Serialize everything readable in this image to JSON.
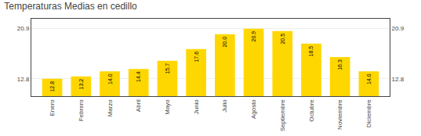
{
  "chart_data": {
    "type": "bar",
    "title": "Temperaturas Medias en cedillo",
    "categories": [
      "Enero",
      "Febrero",
      "Marzo",
      "Abril",
      "Mayo",
      "Junio",
      "Julio",
      "Agosto",
      "Septiembre",
      "Octubre",
      "Noviembre",
      "Diciembre"
    ],
    "values": [
      12.8,
      13.2,
      14.0,
      14.4,
      15.7,
      17.6,
      20.0,
      20.9,
      20.5,
      18.5,
      16.3,
      14.0
    ],
    "value_labels": [
      "12.8",
      "13.2",
      "14.0",
      "14.4",
      "15.7",
      "17.6",
      "20.0",
      "20.9",
      "20.5",
      "18.5",
      "16.3",
      "14.0"
    ],
    "data_labels": true,
    "color": "#FFD700",
    "ylim": [
      10.0,
      22.5
    ],
    "yticks": [
      12.8,
      20.9
    ],
    "y2lim": [
      10.0,
      22.5
    ],
    "y2ticks": [
      12.8,
      20.9
    ],
    "grid": true
  }
}
